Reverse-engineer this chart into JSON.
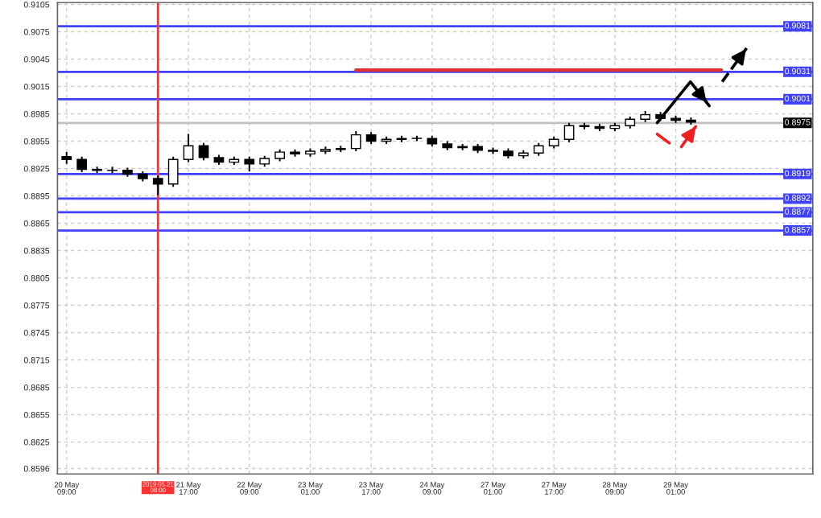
{
  "chart_data": {
    "type": "candlestick",
    "color": "#000000",
    "categories": [
      "20 May 09:00",
      null,
      null,
      null,
      null,
      null,
      "2019.05.21 08:00",
      null,
      "21 May 17:00",
      null,
      null,
      null,
      "22 May 09:00",
      null,
      null,
      null,
      "23 May 01:00",
      null,
      null,
      null,
      "23 May 17:00",
      null,
      null,
      null,
      "24 May 09:00",
      null,
      null,
      null,
      "27 May 01:00",
      null,
      null,
      null,
      "27 May 17:00",
      null,
      null,
      null,
      "28 May 09:00",
      null,
      null,
      null,
      "29 May 01:00",
      null,
      null,
      null,
      null
    ],
    "ohlc": [
      [
        0.8938,
        0.8943,
        0.893,
        0.8935
      ],
      [
        0.8935,
        0.8938,
        0.8921,
        0.8924
      ],
      [
        0.8924,
        0.8927,
        0.892,
        0.8923
      ],
      [
        0.8923,
        0.8927,
        0.892,
        0.8923
      ],
      [
        0.8923,
        0.8926,
        0.8916,
        0.8919
      ],
      [
        0.8919,
        0.8922,
        0.8911,
        0.8914
      ],
      [
        0.8914,
        0.8917,
        0.8896,
        0.8908
      ],
      [
        0.8908,
        0.8938,
        0.8905,
        0.8935
      ],
      [
        0.8935,
        0.8963,
        0.8932,
        0.895
      ],
      [
        0.895,
        0.8953,
        0.8934,
        0.8937
      ],
      [
        0.8937,
        0.894,
        0.8929,
        0.8932
      ],
      [
        0.8932,
        0.8938,
        0.8929,
        0.8935
      ],
      [
        0.8935,
        0.8938,
        0.8922,
        0.893
      ],
      [
        0.893,
        0.8939,
        0.8927,
        0.8936
      ],
      [
        0.8936,
        0.8946,
        0.8933,
        0.8943
      ],
      [
        0.8943,
        0.8946,
        0.8938,
        0.8941
      ],
      [
        0.8941,
        0.8947,
        0.8938,
        0.8944
      ],
      [
        0.8944,
        0.8949,
        0.8941,
        0.8946
      ],
      [
        0.8946,
        0.895,
        0.8943,
        0.8947
      ],
      [
        0.8947,
        0.8966,
        0.8944,
        0.8962
      ],
      [
        0.8962,
        0.8965,
        0.8952,
        0.8955
      ],
      [
        0.8955,
        0.896,
        0.8952,
        0.8957
      ],
      [
        0.8957,
        0.8961,
        0.8954,
        0.8958
      ],
      [
        0.8958,
        0.8961,
        0.8955,
        0.8958
      ],
      [
        0.8958,
        0.8961,
        0.8949,
        0.8952
      ],
      [
        0.8952,
        0.8955,
        0.8945,
        0.8948
      ],
      [
        0.8948,
        0.8952,
        0.8945,
        0.8949
      ],
      [
        0.8949,
        0.8952,
        0.8942,
        0.8945
      ],
      [
        0.8945,
        0.8948,
        0.8941,
        0.8944
      ],
      [
        0.8944,
        0.8947,
        0.8936,
        0.8939
      ],
      [
        0.8939,
        0.8945,
        0.8936,
        0.8942
      ],
      [
        0.8942,
        0.8953,
        0.8939,
        0.895
      ],
      [
        0.895,
        0.896,
        0.8947,
        0.8957
      ],
      [
        0.8957,
        0.8975,
        0.8954,
        0.8972
      ],
      [
        0.8972,
        0.8975,
        0.8968,
        0.8971
      ],
      [
        0.8971,
        0.8974,
        0.8966,
        0.8969
      ],
      [
        0.8969,
        0.8975,
        0.8966,
        0.8972
      ],
      [
        0.8972,
        0.8982,
        0.8969,
        0.8979
      ],
      [
        0.8979,
        0.8988,
        0.8976,
        0.8984
      ],
      [
        0.8984,
        0.8987,
        0.8977,
        0.898
      ],
      [
        0.898,
        0.8983,
        0.8975,
        0.8978
      ],
      [
        0.8978,
        0.8981,
        0.8973,
        0.8976
      ],
      null,
      null,
      null
    ],
    "series": [
      {
        "type": "line",
        "color": "#e03030",
        "values": [
          null,
          null,
          null,
          null,
          null,
          null,
          null,
          null,
          null,
          null,
          null,
          null,
          null,
          null,
          null,
          null,
          null,
          null,
          null,
          0.9033,
          0.9033,
          0.9033,
          0.9033,
          0.9033,
          0.9033,
          0.9033,
          0.9033,
          0.9033,
          0.9033,
          0.9033,
          0.9033,
          0.9033,
          0.9033,
          0.9033,
          0.9033,
          0.9033,
          0.9033,
          0.9033,
          0.9033,
          0.9033,
          0.9033,
          0.9033,
          0.9033,
          0.9033,
          null
        ]
      }
    ],
    "ylim": [
      0.859,
      0.9107
    ],
    "yticks": [
      0.9105,
      0.9075,
      0.9045,
      0.9015,
      0.8985,
      0.8955,
      0.8925,
      0.8895,
      0.8865,
      0.8835,
      0.8805,
      0.8775,
      0.8745,
      0.8715,
      0.8685,
      0.8655,
      0.8625,
      0.8596
    ],
    "ref_lines": [
      {
        "axis": "y",
        "value": 0.9081,
        "label": "0.9081",
        "color": "#4040ff"
      },
      {
        "axis": "y",
        "value": 0.9031,
        "label": "0.9031",
        "color": "#4040ff"
      },
      {
        "axis": "y",
        "value": 0.9001,
        "label": "0.9001",
        "color": "#4040ff"
      },
      {
        "axis": "y",
        "value": 0.8975,
        "label": "0.8975",
        "color": "#c0c0c0"
      },
      {
        "axis": "y",
        "value": 0.8919,
        "label": "0.8919",
        "color": "#4040ff"
      },
      {
        "axis": "y",
        "value": 0.8892,
        "label": "0.8892",
        "color": "#4040ff"
      },
      {
        "axis": "y",
        "value": 0.8877,
        "label": "0.8877",
        "color": "#4040ff"
      },
      {
        "axis": "y",
        "value": 0.8857,
        "label": "0.8857",
        "color": "#4040ff"
      },
      {
        "axis": "x",
        "value": "2019.05.21 08:00",
        "color": "#ff3030"
      }
    ],
    "grid": true
  }
}
